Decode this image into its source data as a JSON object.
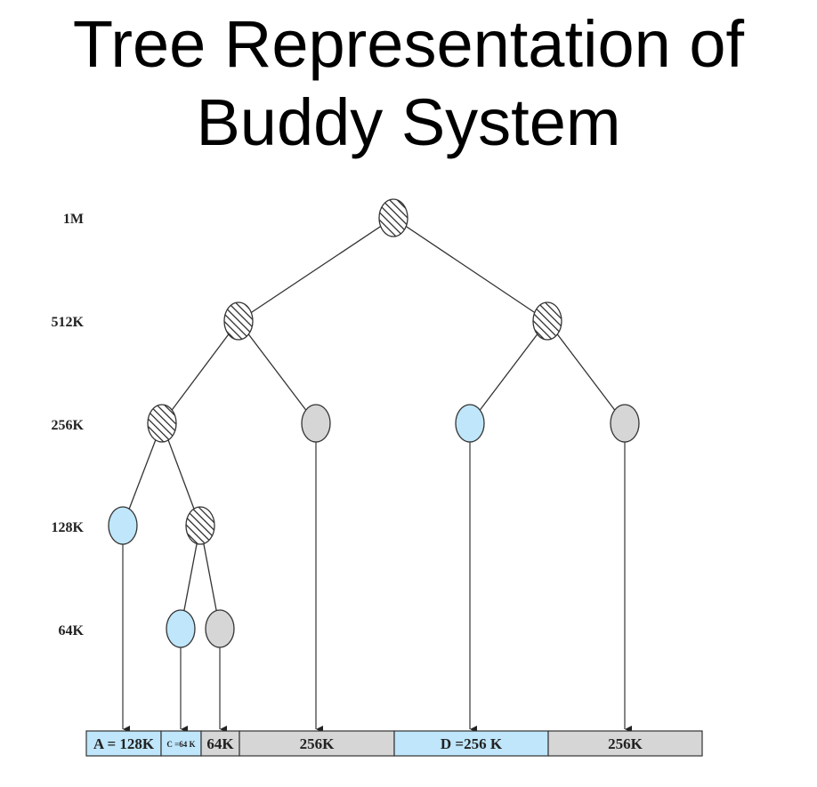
{
  "title": {
    "line1": "Tree Representation of",
    "line2": "Buddy System"
  },
  "levels": [
    "1M",
    "512K",
    "256K",
    "128K",
    "64K"
  ],
  "colors": {
    "allocated": "#bfe6fa",
    "free": "#d6d6d6",
    "split": "#ffffff",
    "line": "#333333"
  },
  "nodes": [
    {
      "id": "root-1m",
      "state": "split"
    },
    {
      "id": "left-512k",
      "state": "split"
    },
    {
      "id": "right-512k",
      "state": "split"
    },
    {
      "id": "ll-256k",
      "state": "split"
    },
    {
      "id": "lr-256k",
      "state": "free"
    },
    {
      "id": "rl-256k",
      "state": "allocated"
    },
    {
      "id": "rr-256k",
      "state": "free"
    },
    {
      "id": "a-128k",
      "state": "allocated"
    },
    {
      "id": "b-128k",
      "state": "split"
    },
    {
      "id": "c-64k",
      "state": "allocated"
    },
    {
      "id": "free-64k",
      "state": "free"
    }
  ],
  "memory": [
    {
      "label": "A = 128K",
      "state": "allocated"
    },
    {
      "label": "C =64 K",
      "state": "allocated"
    },
    {
      "label": "64K",
      "state": "free"
    },
    {
      "label": "256K",
      "state": "free"
    },
    {
      "label": "D =256 K",
      "state": "allocated"
    },
    {
      "label": "256K",
      "state": "free"
    }
  ]
}
